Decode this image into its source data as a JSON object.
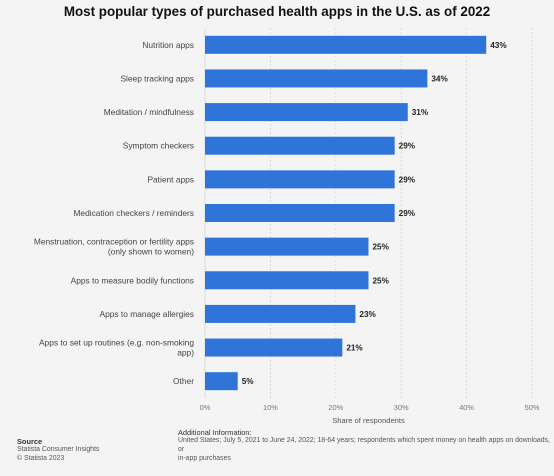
{
  "chart_data": {
    "type": "bar",
    "orientation": "horizontal",
    "title": "Most popular types of purchased health apps in the U.S. as of 2022",
    "xlabel": "Share of respondents",
    "ylabel": "",
    "xlim": [
      0,
      50
    ],
    "x_ticks": [
      "0%",
      "10%",
      "20%",
      "30%",
      "40%",
      "50%"
    ],
    "grid": true,
    "bar_color": "#2f74d8",
    "categories": [
      [
        "Nutrition apps"
      ],
      [
        "Sleep tracking apps"
      ],
      [
        "Meditation / mindfulness"
      ],
      [
        "Symptom checkers"
      ],
      [
        "Patient apps"
      ],
      [
        "Medication checkers / reminders"
      ],
      [
        "Menstruation, contraception or fertility apps",
        "(only shown to women)"
      ],
      [
        "Apps to measure bodily functions"
      ],
      [
        "Apps to manage allergies"
      ],
      [
        "Apps to set up routines (e.g. non-smoking",
        "app)"
      ],
      [
        "Other"
      ]
    ],
    "values": [
      43,
      34,
      31,
      29,
      29,
      29,
      25,
      25,
      23,
      21,
      5
    ],
    "value_labels": [
      "43%",
      "34%",
      "31%",
      "29%",
      "29%",
      "29%",
      "25%",
      "25%",
      "23%",
      "21%",
      "5%"
    ]
  },
  "footer": {
    "source_title": "Source",
    "source_lines": [
      "Statista Consumer Insights",
      "© Statista 2023"
    ],
    "additional_title": "Additional Information:",
    "additional_lines": [
      "United States; July 5, 2021 to June 24, 2022; 18-64 years; respondents which spent money on health apps on downloads, or",
      "in-app purchases"
    ]
  }
}
